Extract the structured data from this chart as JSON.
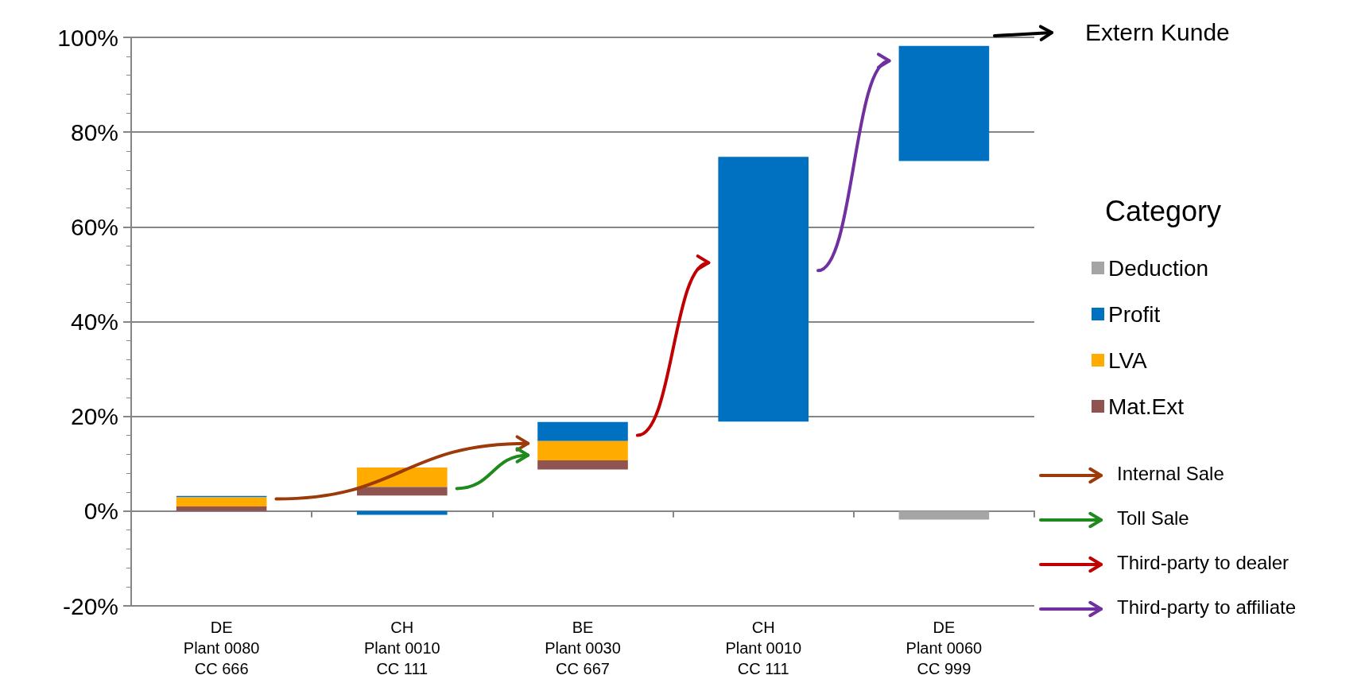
{
  "chart_data": {
    "type": "bar",
    "categories": [
      "DE\nPlant 0080\nCC 666",
      "CH\nPlant 0010\nCC 111",
      "BE\nPlant 0030\nCC 667",
      "CH\nPlant 0010\nCC 111",
      "DE\nPlant 0060\nCC 999"
    ],
    "series": [
      {
        "name": "Deduction",
        "color": "#a5a5a5",
        "base": [
          null,
          null,
          null,
          null,
          0
        ],
        "values": [
          null,
          null,
          null,
          null,
          -1.8
        ]
      },
      {
        "name": "Profit",
        "color": "#0070c0",
        "base": [
          2.9,
          0,
          14.8,
          18.9,
          73.9
        ],
        "values": [
          0.3,
          -0.8,
          4.0,
          55.9,
          24.3
        ]
      },
      {
        "name": "LVA",
        "color": "#ffab00",
        "base": [
          1.0,
          5.1,
          10.7,
          null,
          null
        ],
        "values": [
          1.9,
          4.1,
          4.1,
          null,
          null
        ]
      },
      {
        "name": "Mat.Ext",
        "color": "#8f5350",
        "base": [
          0,
          3.3,
          8.8,
          null,
          null
        ],
        "values": [
          1.0,
          1.8,
          1.9,
          null,
          null
        ]
      }
    ],
    "ylim": [
      -20,
      100
    ],
    "yticks": [
      {
        "value": -20,
        "label": "-20%"
      },
      {
        "value": 0,
        "label": "0%"
      },
      {
        "value": 20,
        "label": "20%"
      },
      {
        "value": 40,
        "label": "40%"
      },
      {
        "value": 60,
        "label": "60%"
      },
      {
        "value": 80,
        "label": "80%"
      },
      {
        "value": 100,
        "label": "100%"
      }
    ],
    "grid": "y",
    "legend": "right",
    "legend_title": "Category",
    "annotations": [
      "Extern Kunde",
      "Internal Sale",
      "Toll Sale",
      "Third-party to dealer",
      "Third-party to affiliate"
    ]
  }
}
